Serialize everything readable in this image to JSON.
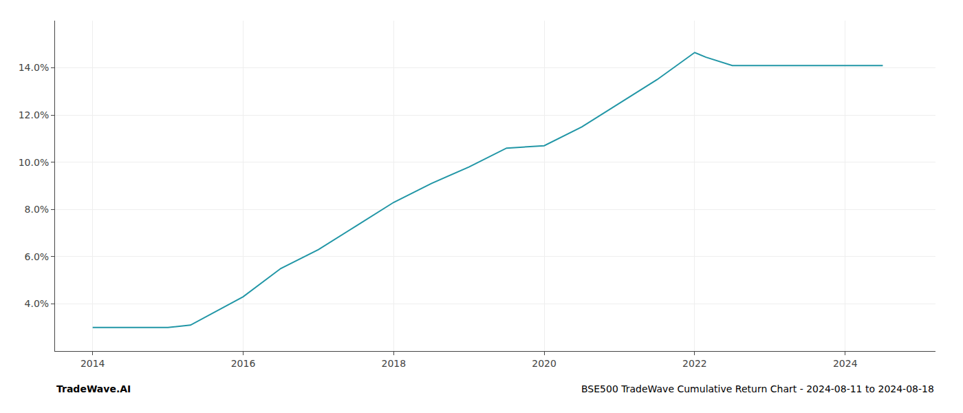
{
  "chart_data": {
    "type": "line",
    "x": [
      2014,
      2014.5,
      2015,
      2015.3,
      2016,
      2016.5,
      2017,
      2017.5,
      2018,
      2018.5,
      2019,
      2019.5,
      2020,
      2020.5,
      2021,
      2021.5,
      2022,
      2022.15,
      2022.5,
      2023,
      2023.5,
      2024,
      2024.5
    ],
    "values": [
      3.0,
      3.0,
      3.0,
      3.1,
      4.3,
      5.5,
      6.3,
      7.3,
      8.3,
      9.1,
      9.8,
      10.6,
      10.7,
      11.5,
      12.5,
      13.5,
      14.65,
      14.45,
      14.1,
      14.1,
      14.1,
      14.1,
      14.1
    ],
    "color": "#2196a6",
    "xlim": [
      2013.5,
      2025.2
    ],
    "ylim": [
      2.0,
      16.0
    ],
    "xticks": [
      2014,
      2016,
      2018,
      2020,
      2022,
      2024
    ],
    "yticks": [
      {
        "value": 4.0,
        "label": "4.0%"
      },
      {
        "value": 6.0,
        "label": "6.0%"
      },
      {
        "value": 8.0,
        "label": "8.0%"
      },
      {
        "value": 10.0,
        "label": "10.0%"
      },
      {
        "value": 12.0,
        "label": "12.0%"
      },
      {
        "value": 14.0,
        "label": "14.0%"
      }
    ],
    "grid": true,
    "annotations": [
      "TradeWave.AI",
      "BSE500 TradeWave Cumulative Return Chart - 2024-08-11 to 2024-08-18"
    ]
  }
}
